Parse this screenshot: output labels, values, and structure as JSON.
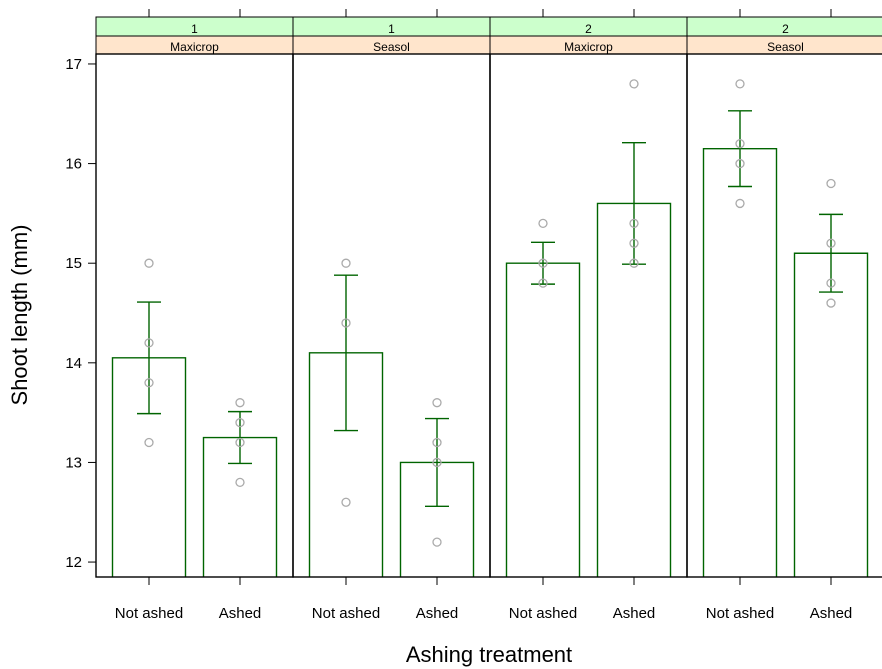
{
  "chart_data": {
    "type": "bar",
    "xlabel": "Ashing treatment",
    "ylabel": "Shoot length (mm)",
    "ylim": [
      11.85,
      17.1
    ],
    "yticks": [
      12,
      13,
      14,
      15,
      16,
      17
    ],
    "categories": [
      "Not ashed",
      "Ashed"
    ],
    "grid": false,
    "colors": {
      "bar": "#006400",
      "points": "#aaaaaa",
      "strip_top": "#ccffcc",
      "strip_bottom": "#ffe5cc"
    },
    "panels": [
      {
        "strip_top": "1",
        "strip_bottom": "Maxicrop",
        "bars": [
          {
            "category": "Not ashed",
            "mean": 14.05,
            "lower": 13.49,
            "upper": 14.61,
            "points": [
              15.0,
              14.2,
              13.8,
              13.2
            ]
          },
          {
            "category": "Ashed",
            "mean": 13.25,
            "lower": 12.99,
            "upper": 13.51,
            "points": [
              13.6,
              13.4,
              13.2,
              12.8
            ]
          }
        ]
      },
      {
        "strip_top": "1",
        "strip_bottom": "Seasol",
        "bars": [
          {
            "category": "Not ashed",
            "mean": 14.1,
            "lower": 13.32,
            "upper": 14.88,
            "points": [
              15.0,
              14.4,
              12.6
            ]
          },
          {
            "category": "Ashed",
            "mean": 13.0,
            "lower": 12.56,
            "upper": 13.44,
            "points": [
              13.6,
              13.2,
              13.0,
              12.2
            ]
          }
        ]
      },
      {
        "strip_top": "2",
        "strip_bottom": "Maxicrop",
        "bars": [
          {
            "category": "Not ashed",
            "mean": 15.0,
            "lower": 14.79,
            "upper": 15.21,
            "points": [
              15.4,
              15.0,
              14.8
            ]
          },
          {
            "category": "Ashed",
            "mean": 15.6,
            "lower": 14.99,
            "upper": 16.21,
            "points": [
              16.8,
              15.4,
              15.2,
              15.0
            ]
          }
        ]
      },
      {
        "strip_top": "2",
        "strip_bottom": "Seasol",
        "bars": [
          {
            "category": "Not ashed",
            "mean": 16.15,
            "lower": 15.77,
            "upper": 16.53,
            "points": [
              16.8,
              16.2,
              16.0,
              15.6
            ]
          },
          {
            "category": "Ashed",
            "mean": 15.1,
            "lower": 14.71,
            "upper": 15.49,
            "points": [
              15.8,
              15.2,
              14.8,
              14.6
            ]
          }
        ]
      }
    ]
  }
}
